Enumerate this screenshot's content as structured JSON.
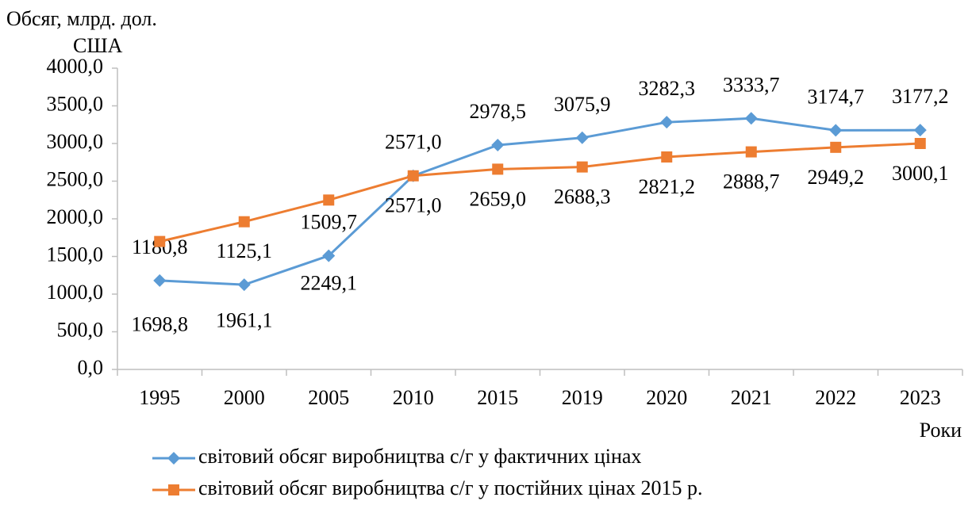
{
  "chart_data": {
    "type": "line",
    "ylabel": [
      "Обсяг, млрд. дол.",
      "США"
    ],
    "xlabel": "Роки",
    "categories": [
      "1995",
      "2000",
      "2005",
      "2010",
      "2015",
      "2019",
      "2020",
      "2021",
      "2022",
      "2023"
    ],
    "series": [
      {
        "name": "світовий обсяг виробництва с/г у фактичних цінах",
        "color": "#5b9bd5",
        "marker": "diamond",
        "values": [
          1180.8,
          1125.1,
          1509.7,
          2571.0,
          2978.5,
          3075.9,
          3282.3,
          3333.7,
          3174.7,
          3177.2
        ],
        "value_labels": [
          "1180,8",
          "1125,1",
          "1509,7",
          "2571,0",
          "2978,5",
          "3075,9",
          "3282,3",
          "3333,7",
          "3174,7",
          "3177,2"
        ]
      },
      {
        "name": "світовий обсяг виробництва с/г у постійних цінах 2015 р.",
        "color": "#ed7d31",
        "marker": "square",
        "values": [
          1698.8,
          1961.1,
          2249.1,
          2571.0,
          2659.0,
          2688.3,
          2821.2,
          2888.7,
          2949.2,
          3000.1
        ],
        "value_labels": [
          "1698,8",
          "1961,1",
          "2249,1",
          "2571,0",
          "2659,0",
          "2688,3",
          "2821,2",
          "2888,7",
          "2949,2",
          "3000,1"
        ]
      }
    ],
    "ylim": [
      0,
      4000
    ],
    "yticks": [
      {
        "value": 0,
        "label": "0,0"
      },
      {
        "value": 500,
        "label": "500,0"
      },
      {
        "value": 1000,
        "label": "1000,0"
      },
      {
        "value": 1500,
        "label": "1500,0"
      },
      {
        "value": 2000,
        "label": "2000,0"
      },
      {
        "value": 2500,
        "label": "2500,0"
      },
      {
        "value": 3000,
        "label": "3000,0"
      },
      {
        "value": 3500,
        "label": "3500,0"
      },
      {
        "value": 4000,
        "label": "4000,0"
      }
    ],
    "grid": false
  }
}
